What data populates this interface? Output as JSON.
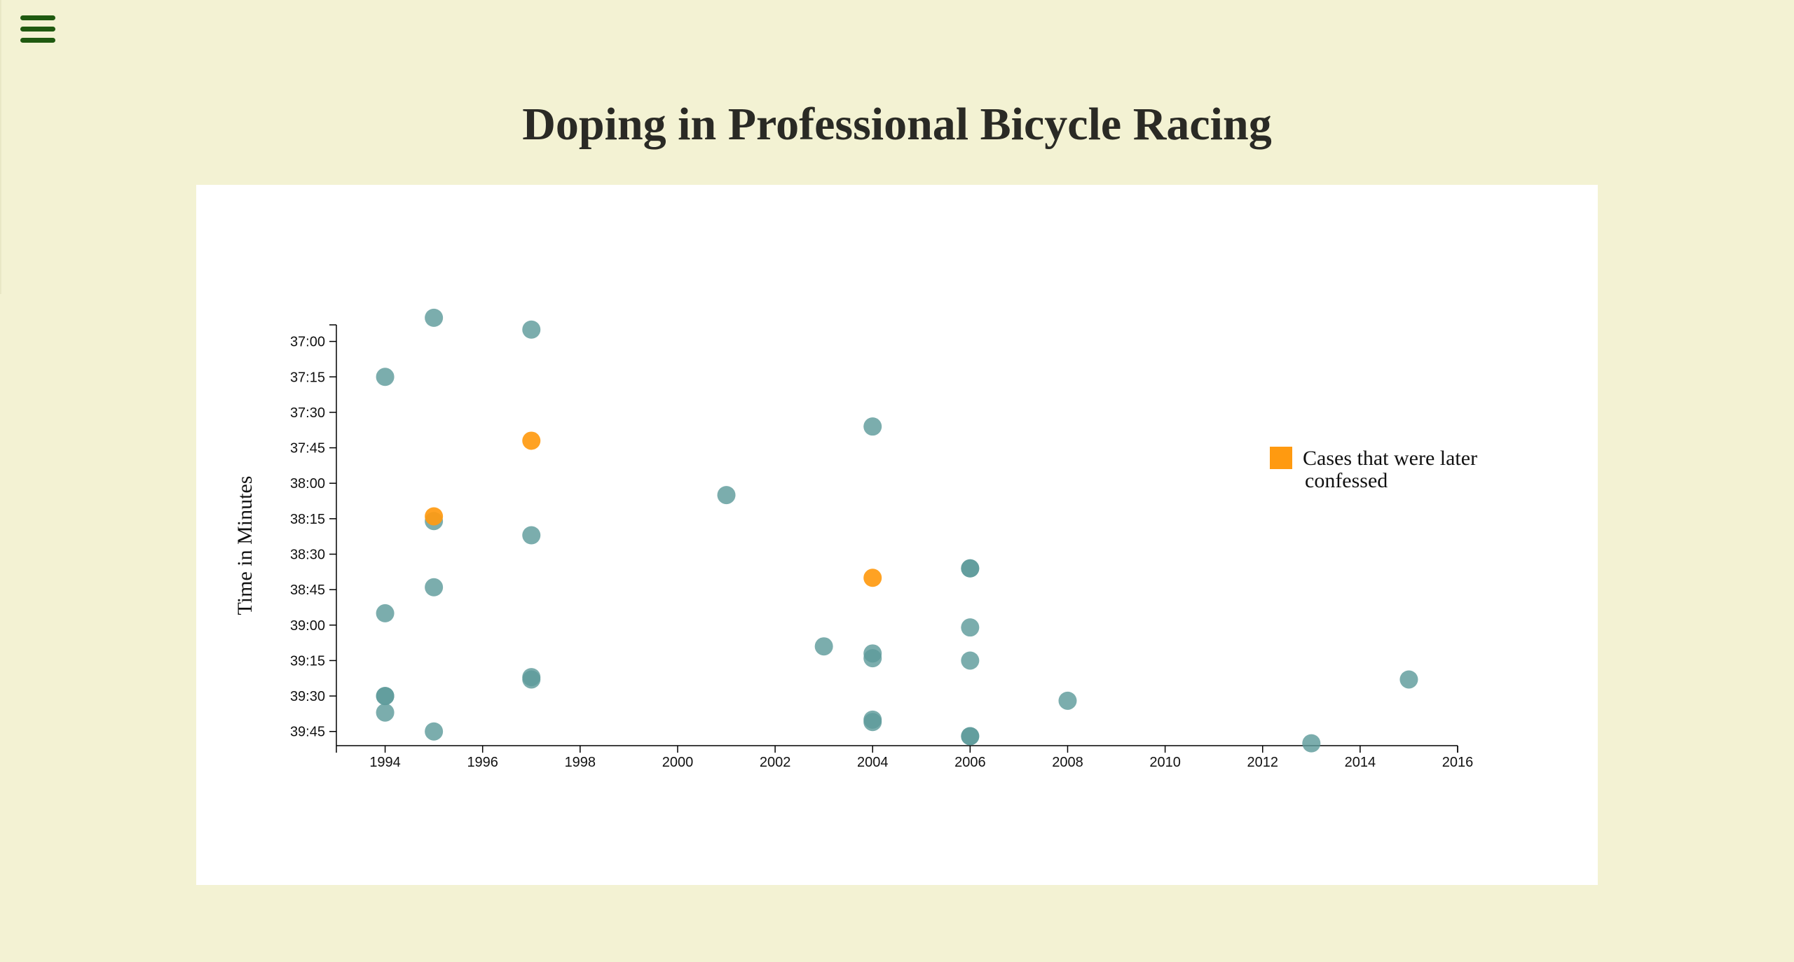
{
  "header": {
    "menu_icon": "hamburger-menu-icon",
    "title": "Doping in Professional Bicycle Racing"
  },
  "colors": {
    "background": "#f3f2d3",
    "panel": "#ffffff",
    "menu_icon": "#1f5a10",
    "title": "#2a2a25",
    "point_default": "#5e9b9b",
    "point_confessed": "#ff9a10"
  },
  "chart_data": {
    "type": "scatter",
    "title": "Doping in Professional Bicycle Racing",
    "xlabel": "",
    "ylabel": "Time in Minutes",
    "xlim": [
      1993,
      2016
    ],
    "ylim": [
      "36:53",
      "39:51"
    ],
    "y_axis_inverted": true,
    "x_ticks": [
      "1994",
      "1996",
      "1998",
      "2000",
      "2002",
      "2004",
      "2006",
      "2008",
      "2010",
      "2012",
      "2014",
      "2016"
    ],
    "y_ticks": [
      "37:00",
      "37:15",
      "37:30",
      "37:45",
      "38:00",
      "38:15",
      "38:30",
      "38:45",
      "39:00",
      "39:15",
      "39:30",
      "39:45"
    ],
    "grid": false,
    "legend": {
      "position": "right",
      "entries": [
        {
          "label": "Cases that were later confessed",
          "color": "#ff9a10"
        }
      ]
    },
    "series": [
      {
        "color": "#5e9b9b",
        "points": [
          {
            "x": 1995,
            "y": "36:50"
          },
          {
            "x": 1997,
            "y": "36:55"
          },
          {
            "x": 1994,
            "y": "37:15"
          },
          {
            "x": 2004,
            "y": "37:36"
          },
          {
            "x": 2001,
            "y": "38:05"
          },
          {
            "x": 1995,
            "y": "38:16"
          },
          {
            "x": 1997,
            "y": "38:22"
          },
          {
            "x": 2006,
            "y": "38:36"
          },
          {
            "x": 2006,
            "y": "38:36"
          },
          {
            "x": 1995,
            "y": "38:44"
          },
          {
            "x": 1994,
            "y": "38:55"
          },
          {
            "x": 2006,
            "y": "39:01"
          },
          {
            "x": 2003,
            "y": "39:09"
          },
          {
            "x": 2004,
            "y": "39:12"
          },
          {
            "x": 2004,
            "y": "39:14"
          },
          {
            "x": 2006,
            "y": "39:15"
          },
          {
            "x": 1997,
            "y": "39:22"
          },
          {
            "x": 1997,
            "y": "39:23"
          },
          {
            "x": 2015,
            "y": "39:23"
          },
          {
            "x": 1994,
            "y": "39:30"
          },
          {
            "x": 1994,
            "y": "39:30"
          },
          {
            "x": 2008,
            "y": "39:32"
          },
          {
            "x": 1994,
            "y": "39:37"
          },
          {
            "x": 2004,
            "y": "39:40"
          },
          {
            "x": 2004,
            "y": "39:41"
          },
          {
            "x": 1995,
            "y": "39:45"
          },
          {
            "x": 2006,
            "y": "39:47"
          },
          {
            "x": 2006,
            "y": "39:47"
          },
          {
            "x": 2013,
            "y": "39:50"
          }
        ]
      },
      {
        "name": "Cases that were later confessed",
        "color": "#ff9a10",
        "points": [
          {
            "x": 1997,
            "y": "37:42"
          },
          {
            "x": 1995,
            "y": "38:14"
          },
          {
            "x": 2004,
            "y": "38:40"
          }
        ]
      }
    ]
  }
}
